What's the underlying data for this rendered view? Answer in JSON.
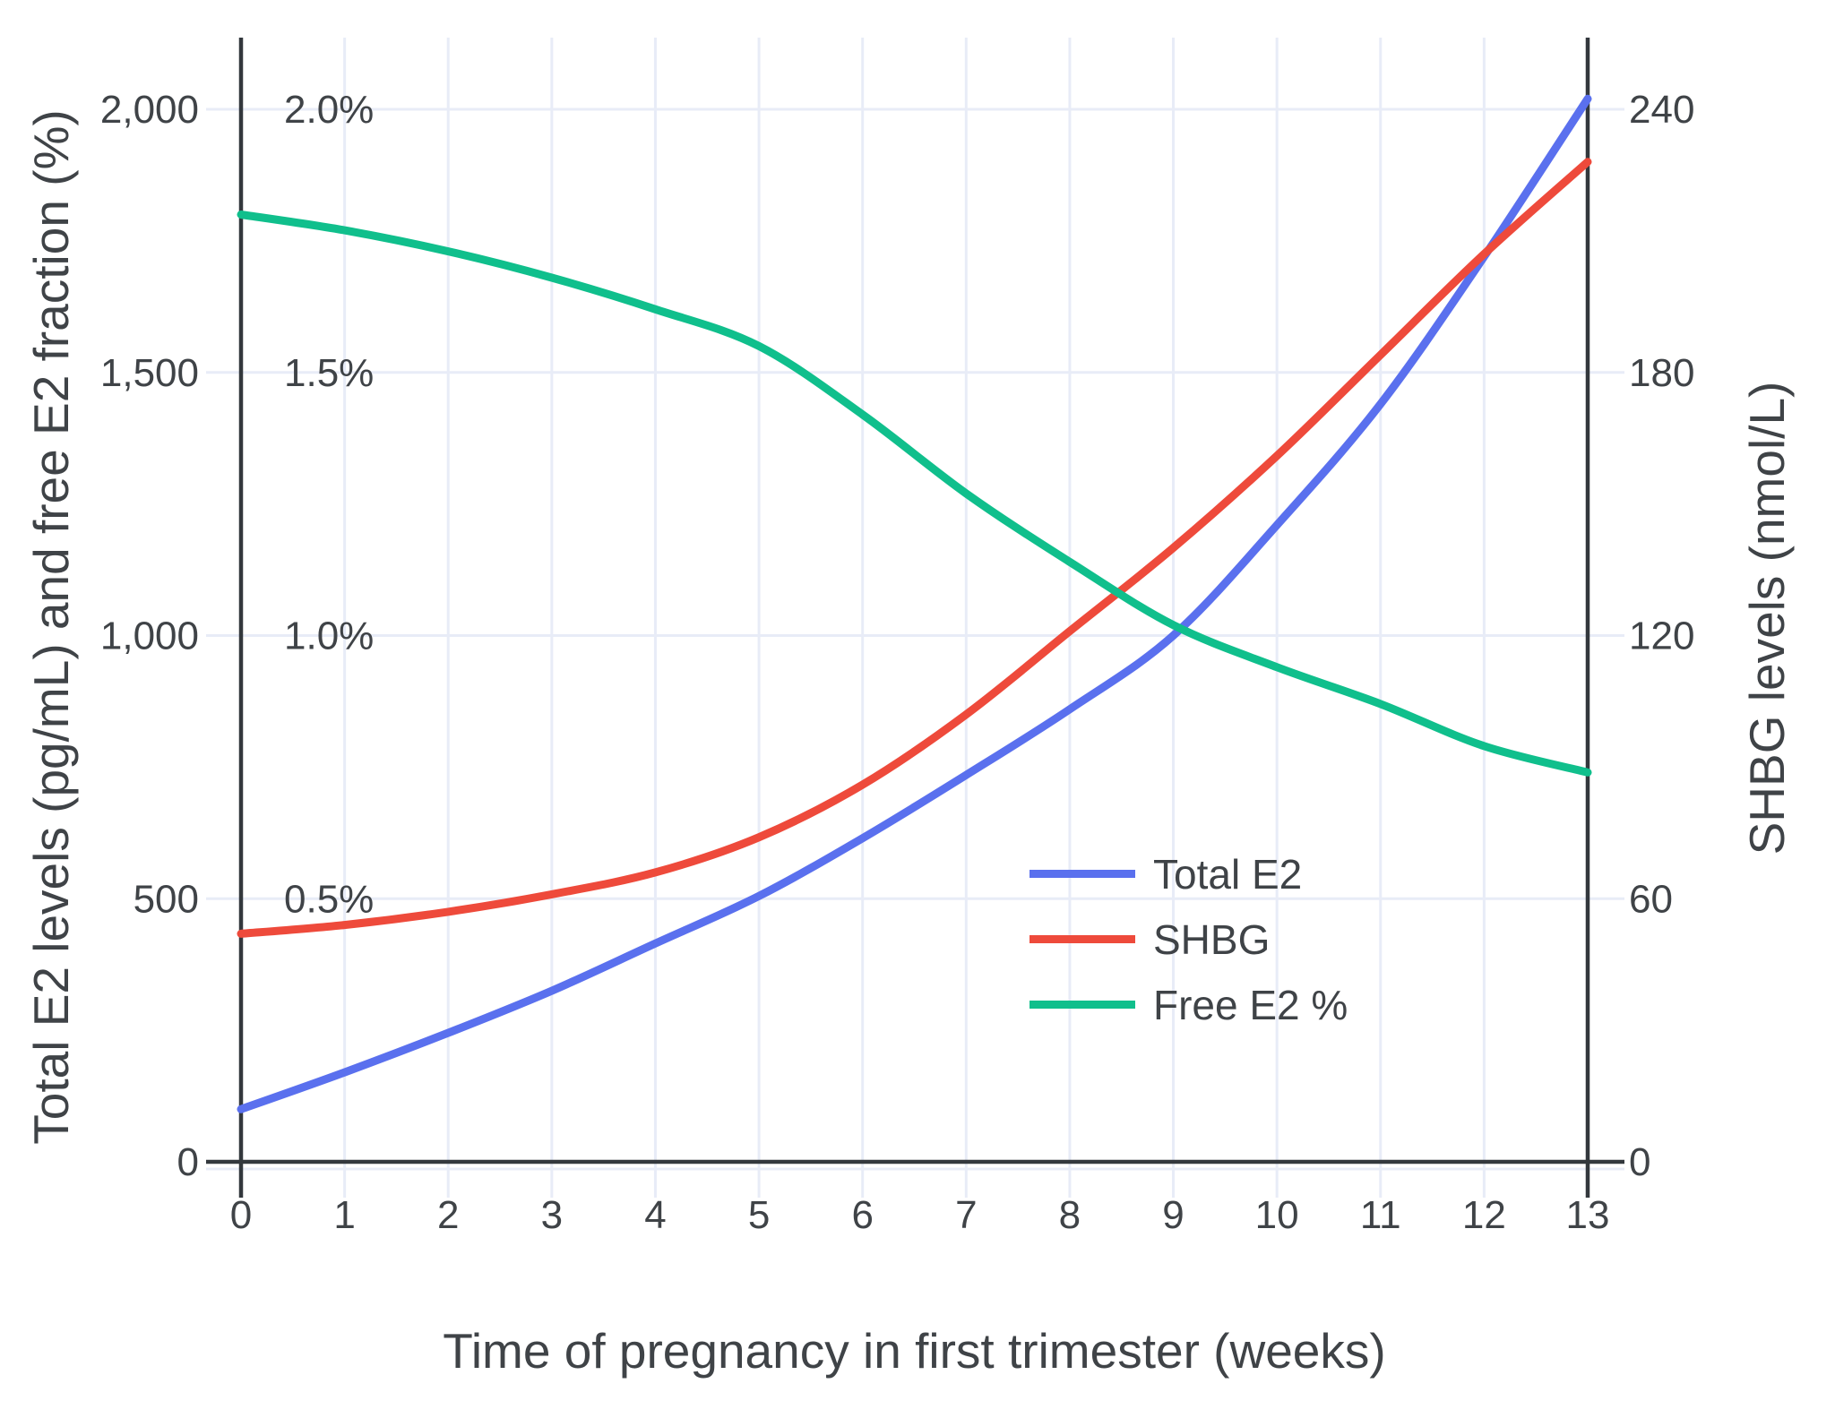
{
  "chart_data": {
    "type": "line",
    "title": "",
    "xlabel": "Time of pregnancy in first trimester (weeks)",
    "ylabel_left": "Total E2 levels (pg/mL) and free E2 fraction (%)",
    "ylabel_right": "SHBG levels (nmol/L)",
    "x": [
      0,
      1,
      2,
      3,
      4,
      5,
      6,
      7,
      8,
      9,
      10,
      11,
      12,
      13
    ],
    "x_tick_labels": [
      "0",
      "1",
      "2",
      "3",
      "4",
      "5",
      "6",
      "7",
      "8",
      "9",
      "10",
      "11",
      "12",
      "13"
    ],
    "left_axis": {
      "range": [
        0,
        2136
      ],
      "ticks": [
        0,
        500,
        1000,
        1500,
        2000
      ],
      "tick_labels": [
        "0",
        "500",
        "1,000",
        "1,500",
        "2,000"
      ]
    },
    "percent_axis": {
      "ticks": [
        0.5,
        1.0,
        1.5,
        2.0
      ],
      "tick_labels": [
        "0.5%",
        "1.0%",
        "1.5%",
        "2.0%"
      ]
    },
    "right_axis": {
      "range": [
        0,
        256
      ],
      "ticks": [
        0,
        60,
        120,
        180,
        240
      ],
      "tick_labels": [
        "0",
        "60",
        "120",
        "180",
        "240"
      ]
    },
    "grid": true,
    "legend_position": "inside-right-middle",
    "series": [
      {
        "name": "Total E2",
        "axis": "left",
        "unit": "pg/mL",
        "color": "#5a70ee",
        "values": [
          100,
          170,
          245,
          325,
          415,
          505,
          615,
          735,
          860,
          1000,
          1210,
          1440,
          1720,
          2020
        ]
      },
      {
        "name": "SHBG",
        "axis": "right",
        "unit": "nmol/L",
        "color": "#ee4a3b",
        "values": [
          52,
          54,
          57,
          61,
          66,
          74,
          86,
          102,
          121,
          140,
          161,
          184,
          207,
          228
        ]
      },
      {
        "name": "Free E2 %",
        "axis": "percent",
        "unit": "%",
        "color": "#10bf8c",
        "values": [
          1.8,
          1.77,
          1.73,
          1.68,
          1.62,
          1.55,
          1.42,
          1.27,
          1.14,
          1.02,
          0.94,
          0.87,
          0.79,
          0.74
        ]
      }
    ]
  },
  "colors": {
    "background": "#ffffff",
    "grid": "#e8ecf7",
    "axis": "#33383d",
    "text": "#3f4347"
  }
}
